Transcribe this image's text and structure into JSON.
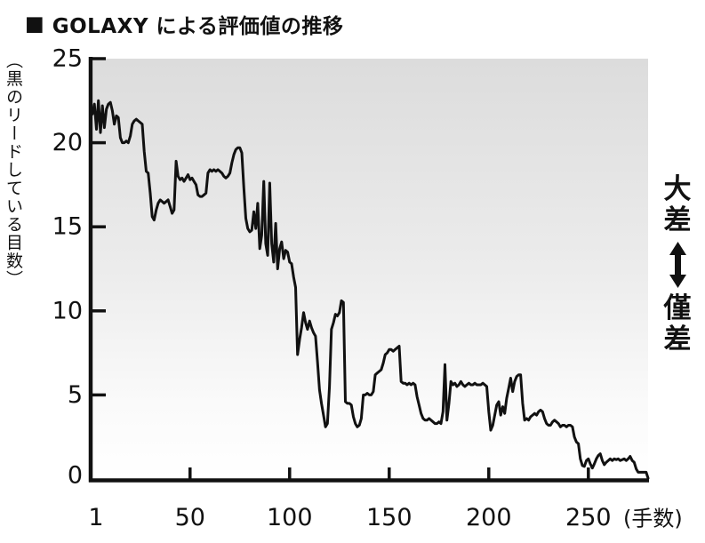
{
  "title": {
    "marker": "■",
    "text": "GOLAXY による評価値の推移"
  },
  "y_axis": {
    "label": "（黒のリードしている目数）"
  },
  "x_axis": {
    "unit": "(手数)"
  },
  "right_annotation": {
    "top": "大差",
    "bottom": "僅差",
    "arrow_icon": "double-vertical-arrow"
  },
  "colors": {
    "text": "#111111",
    "axis": "#111111",
    "line": "#111111",
    "plot_bg_top": "#dcdcdc",
    "plot_bg_bottom": "#ffffff"
  },
  "chart_data": {
    "type": "line",
    "title": "GOLAXY による評価値の推移",
    "xlabel": "手数",
    "ylabel": "黒のリードしている目数",
    "legend": "none",
    "grid": false,
    "xlim": [
      1,
      280
    ],
    "ylim": [
      0,
      25
    ],
    "x_ticks": [
      1,
      50,
      100,
      150,
      200,
      250
    ],
    "y_ticks": [
      0,
      5,
      10,
      15,
      20,
      25
    ],
    "x_unit": "(手数)",
    "line_color": "#111111",
    "bg_gradient_stops": [
      {
        "offset": 0,
        "color": "#dcdcdc"
      },
      {
        "offset": 0.5,
        "color": "#ececec"
      },
      {
        "offset": 0.82,
        "color": "#fafafa"
      },
      {
        "offset": 1,
        "color": "#ffffff"
      }
    ],
    "x_start": 1,
    "x_step": 1,
    "series": [
      {
        "name": "黒のリード目数 (GOLAXY評価値)",
        "values": [
          21.7,
          22.3,
          20.8,
          22.5,
          20.6,
          22.2,
          20.9,
          22.0,
          22.3,
          22.4,
          21.9,
          21.1,
          21.6,
          21.5,
          20.3,
          20.0,
          20.0,
          20.1,
          20.0,
          20.4,
          21.1,
          21.3,
          21.4,
          21.3,
          21.2,
          21.1,
          19.5,
          18.3,
          18.2,
          17.0,
          15.6,
          15.4,
          16.0,
          16.4,
          16.6,
          16.5,
          16.4,
          16.5,
          16.6,
          16.2,
          15.8,
          16.0,
          18.9,
          18.0,
          17.8,
          17.9,
          17.7,
          17.9,
          18.1,
          17.8,
          17.9,
          17.7,
          17.5,
          16.9,
          16.8,
          16.8,
          16.9,
          17.0,
          18.2,
          18.4,
          18.3,
          18.4,
          18.3,
          18.4,
          18.3,
          18.2,
          18.0,
          17.9,
          18.0,
          18.2,
          18.8,
          19.3,
          19.6,
          19.7,
          19.7,
          19.4,
          17.3,
          15.5,
          14.9,
          14.7,
          14.8,
          15.9,
          14.9,
          16.4,
          13.7,
          14.5,
          17.7,
          14.0,
          13.3,
          17.6,
          14.0,
          12.9,
          15.2,
          12.5,
          13.7,
          14.1,
          13.1,
          13.6,
          13.5,
          12.9,
          12.8,
          12.0,
          11.4,
          7.4,
          8.3,
          9.0,
          9.9,
          9.3,
          8.9,
          9.4,
          9.0,
          8.7,
          8.5,
          7.0,
          5.3,
          4.5,
          3.8,
          3.1,
          3.3,
          5.5,
          8.9,
          9.3,
          9.8,
          9.7,
          9.9,
          10.6,
          10.5,
          4.6,
          4.5,
          4.5,
          4.4,
          3.7,
          3.3,
          3.1,
          3.2,
          3.6,
          5.0,
          5.0,
          5.1,
          5.0,
          5.0,
          5.2,
          6.2,
          6.3,
          6.4,
          6.5,
          6.9,
          7.4,
          7.5,
          7.7,
          7.7,
          7.6,
          7.7,
          7.8,
          7.9,
          5.8,
          5.7,
          5.7,
          5.6,
          5.7,
          5.6,
          5.7,
          5.6,
          4.9,
          4.4,
          3.9,
          3.6,
          3.5,
          3.5,
          3.6,
          3.5,
          3.4,
          3.3,
          3.3,
          3.4,
          3.3,
          4.0,
          6.8,
          3.5,
          4.5,
          5.8,
          5.6,
          5.7,
          5.5,
          5.6,
          5.8,
          5.6,
          5.5,
          5.6,
          5.7,
          5.6,
          5.6,
          5.7,
          5.6,
          5.6,
          5.6,
          5.7,
          5.6,
          5.5,
          4.0,
          2.9,
          3.2,
          3.8,
          4.4,
          4.6,
          3.8,
          4.3,
          3.9,
          4.8,
          5.4,
          6.0,
          5.2,
          5.8,
          6.1,
          6.2,
          6.2,
          4.5,
          3.5,
          3.6,
          3.5,
          3.7,
          3.8,
          3.9,
          3.8,
          4.0,
          4.1,
          4.0,
          3.6,
          3.3,
          3.2,
          3.2,
          3.4,
          3.5,
          3.4,
          3.3,
          3.1,
          3.2,
          3.2,
          3.1,
          3.2,
          3.2,
          3.1,
          2.5,
          2.2,
          2.1,
          1.2,
          0.8,
          0.75,
          1.1,
          1.2,
          0.9,
          0.65,
          0.9,
          1.2,
          1.4,
          1.5,
          1.1,
          0.85,
          1.0,
          1.1,
          1.2,
          1.1,
          1.2,
          1.15,
          1.2,
          1.1,
          1.15,
          1.2,
          1.1,
          1.2,
          1.35,
          1.1,
          1.0,
          0.6,
          0.4,
          0.4,
          0.4,
          0.4,
          0.4,
          0.05
        ]
      }
    ]
  }
}
